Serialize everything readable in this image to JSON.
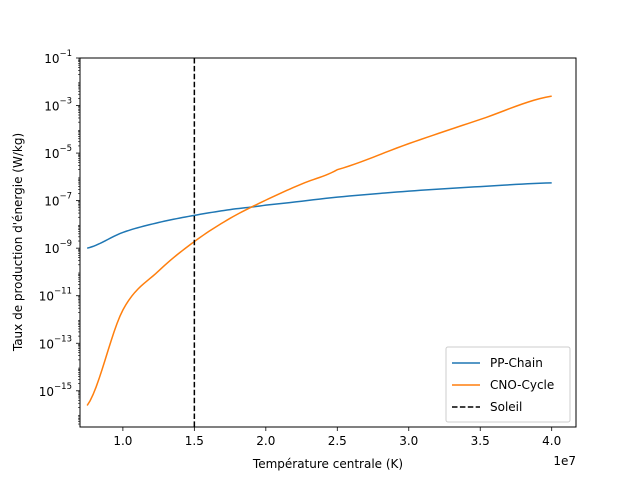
{
  "chart_data": {
    "type": "line",
    "title": "",
    "xlabel": "Température centrale (K)",
    "ylabel": "Taux de production d'énergie (W/kg)",
    "x_offset_label": "1e7",
    "xlim": [
      7000000,
      41700000
    ],
    "ylim": [
      3e-17,
      0.1
    ],
    "yscale": "log",
    "grid": false,
    "legend_position": "lower-right",
    "x_ticks": [
      {
        "value": 10000000,
        "label": "1.0"
      },
      {
        "value": 15000000,
        "label": "1.5"
      },
      {
        "value": 20000000,
        "label": "2.0"
      },
      {
        "value": 25000000,
        "label": "2.5"
      },
      {
        "value": 30000000,
        "label": "3.0"
      },
      {
        "value": 35000000,
        "label": "3.5"
      },
      {
        "value": 40000000,
        "label": "4.0"
      }
    ],
    "y_ticks": [
      {
        "value": 1e-15,
        "base": "10",
        "exp": "−15"
      },
      {
        "value": 1e-13,
        "base": "10",
        "exp": "−13"
      },
      {
        "value": 1e-11,
        "base": "10",
        "exp": "−11"
      },
      {
        "value": 1e-09,
        "base": "10",
        "exp": "−9"
      },
      {
        "value": 1e-07,
        "base": "10",
        "exp": "−7"
      },
      {
        "value": 1e-05,
        "base": "10",
        "exp": "−5"
      },
      {
        "value": 0.001,
        "base": "10",
        "exp": "−3"
      },
      {
        "value": 0.1,
        "base": "10",
        "exp": "−1"
      }
    ],
    "series": [
      {
        "name": "PP-Chain",
        "color": "#1f77b4",
        "style": "solid",
        "x": [
          7500000,
          10000000,
          12500000,
          15000000,
          17500000,
          20000000,
          25000000,
          30000000,
          35000000,
          40000000
        ],
        "y": [
          1e-09,
          4.6e-09,
          1.2e-08,
          2.4e-08,
          4.2e-08,
          6.5e-08,
          1.4e-07,
          2.5e-07,
          3.9e-07,
          5.6e-07
        ]
      },
      {
        "name": "CNO-Cycle",
        "color": "#ff7f0e",
        "style": "solid",
        "x": [
          7500000,
          10000000,
          12500000,
          15000000,
          17500000,
          20000000,
          22500000,
          25000000,
          30000000,
          35000000,
          40000000
        ],
        "y": [
          2.4e-16,
          2.5e-12,
          1.1e-10,
          1.9e-09,
          1.8e-08,
          1.05e-07,
          5e-07,
          2e-06,
          2.5e-05,
          0.00026,
          0.0025
        ]
      }
    ],
    "reference_lines": [
      {
        "name": "Soleil",
        "orientation": "vertical",
        "x": 15000000,
        "color": "#000000",
        "style": "dashed"
      }
    ]
  }
}
